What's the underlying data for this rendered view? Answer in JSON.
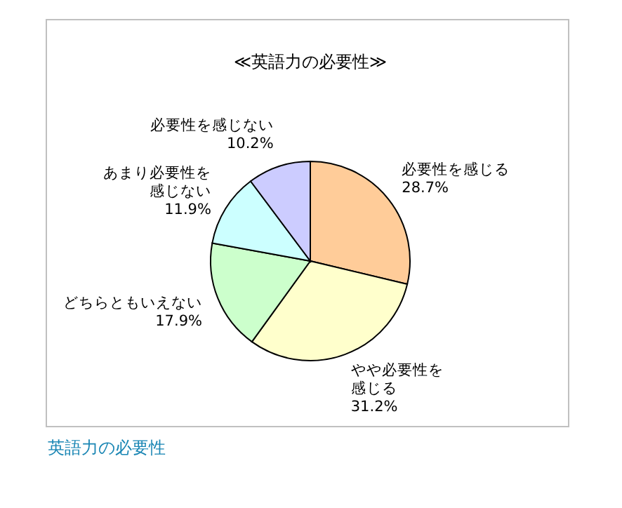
{
  "chart_data": {
    "type": "pie",
    "title": "≪英語力の必要性≫",
    "categories": [
      "必要性を感じる",
      "やや必要性を感じる",
      "どちらともいえない",
      "あまり必要性を感じない",
      "必要性を感じない"
    ],
    "values": [
      28.7,
      31.2,
      17.9,
      11.9,
      10.2
    ],
    "colors": [
      "#ffcc99",
      "#ffffcc",
      "#ccffcc",
      "#ccffff",
      "#ccccff"
    ],
    "value_labels": [
      "28.7%",
      "31.2%",
      "17.9%",
      "11.9%",
      "10.2%"
    ],
    "annotations": [
      "英語力の必要性"
    ]
  }
}
